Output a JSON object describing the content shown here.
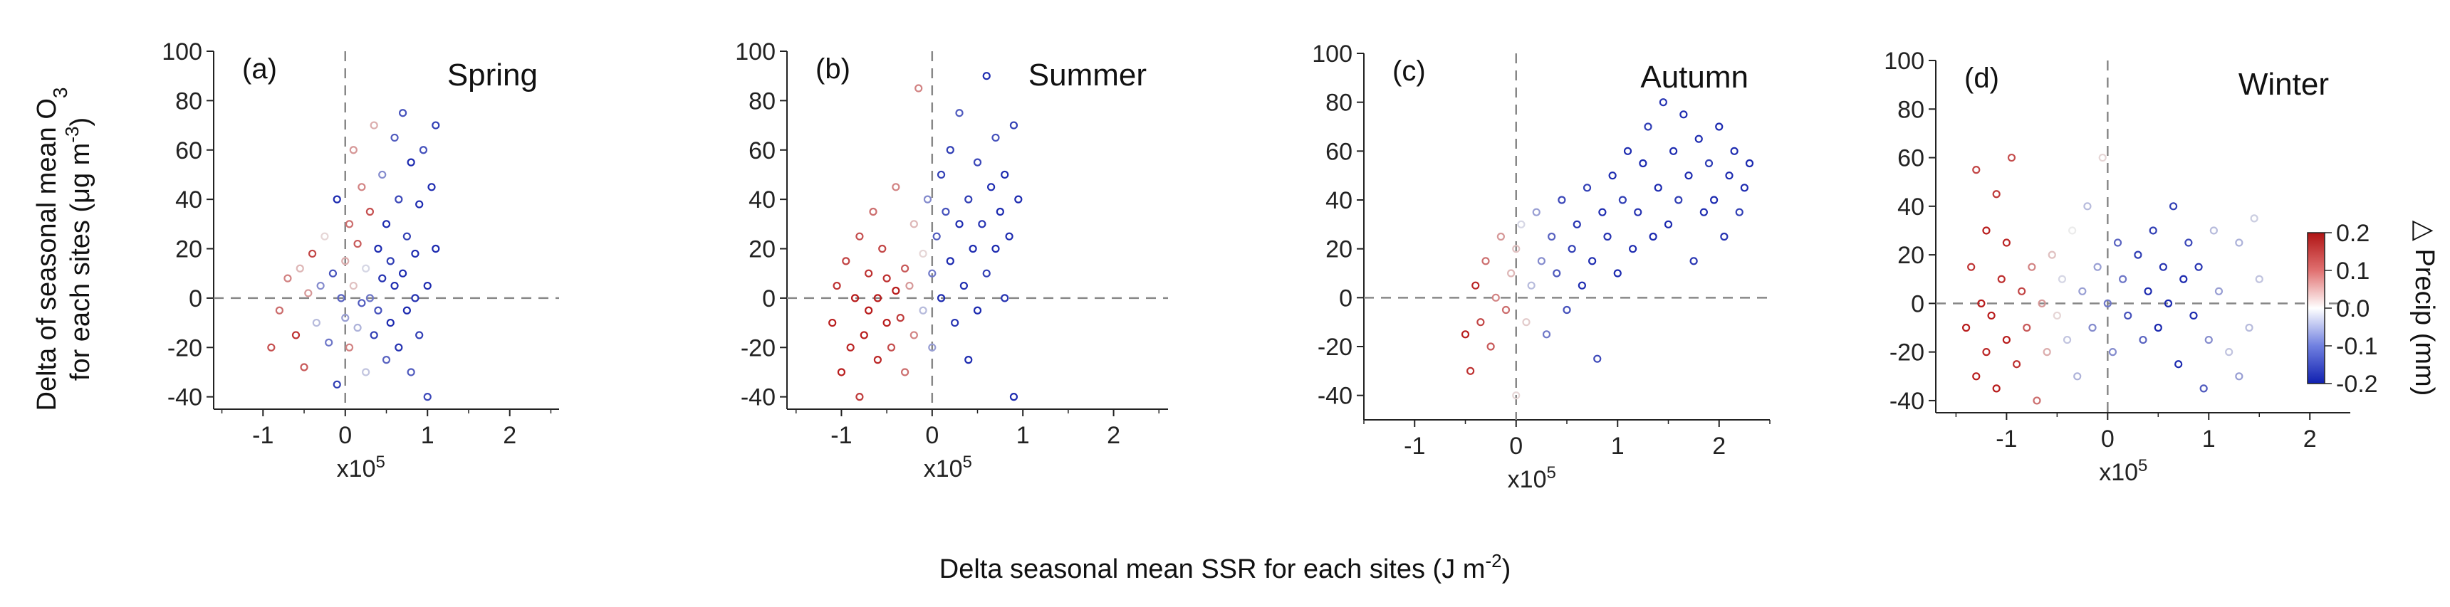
{
  "figure": {
    "ylabel_line1": "Delta of seasonal mean O",
    "ylabel_sub": "3",
    "ylabel_line2_pre": "for each sites (μg m",
    "ylabel_line2_sup": "-3",
    "ylabel_line2_post": ")",
    "xlabel_pre": "Delta seasonal mean SSR for each sites (J m",
    "xlabel_sup": "-2",
    "xlabel_post": ")",
    "colorbar": {
      "label": "△  Precip (mm)",
      "ticks": [
        "0.2",
        "0.1",
        "0.0",
        "-0.1",
        "-0.2"
      ],
      "range": [
        -0.2,
        0.2
      ],
      "colors": {
        "high": "#c81e1e",
        "mid": "#ffffff",
        "low": "#1f2fbf"
      }
    }
  },
  "chart_data": [
    {
      "type": "scatter",
      "letter": "(a)",
      "title": "Spring",
      "xlabel": "x10",
      "xlabel_sup": "5",
      "xlim": [
        -1.6,
        2.6
      ],
      "ylim": [
        -45,
        100
      ],
      "xticks": [
        "-1",
        "0",
        "1",
        "2"
      ],
      "xtick_values": [
        -1,
        0,
        1,
        2
      ],
      "yticks": [
        "100",
        "80",
        "60",
        "40",
        "20",
        "0",
        "-20",
        "-40"
      ],
      "ytick_values": [
        100,
        80,
        60,
        40,
        20,
        0,
        -20,
        -40
      ],
      "points": [
        [
          -0.9,
          -20,
          0.15
        ],
        [
          -0.8,
          -5,
          0.12
        ],
        [
          -0.7,
          8,
          0.1
        ],
        [
          -0.6,
          -15,
          0.18
        ],
        [
          -0.55,
          12,
          0.05
        ],
        [
          -0.5,
          -28,
          0.14
        ],
        [
          -0.45,
          2,
          0.08
        ],
        [
          -0.4,
          18,
          0.16
        ],
        [
          -0.35,
          -10,
          -0.05
        ],
        [
          -0.3,
          5,
          -0.1
        ],
        [
          -0.25,
          25,
          0.02
        ],
        [
          -0.2,
          -18,
          -0.12
        ],
        [
          -0.15,
          10,
          -0.16
        ],
        [
          -0.1,
          40,
          -0.2
        ],
        [
          -0.1,
          -35,
          -0.18
        ],
        [
          -0.05,
          0,
          -0.14
        ],
        [
          0.0,
          15,
          0.06
        ],
        [
          0.0,
          -8,
          -0.08
        ],
        [
          0.05,
          30,
          0.12
        ],
        [
          0.05,
          -20,
          0.1
        ],
        [
          0.1,
          5,
          0.04
        ],
        [
          0.1,
          60,
          0.08
        ],
        [
          0.15,
          -12,
          -0.06
        ],
        [
          0.15,
          22,
          0.14
        ],
        [
          0.2,
          -2,
          -0.15
        ],
        [
          0.2,
          45,
          0.1
        ],
        [
          0.25,
          12,
          -0.02
        ],
        [
          0.25,
          -30,
          -0.04
        ],
        [
          0.3,
          35,
          0.15
        ],
        [
          0.3,
          0,
          -0.12
        ],
        [
          0.35,
          70,
          0.06
        ],
        [
          0.35,
          -15,
          -0.18
        ],
        [
          0.4,
          20,
          -0.2
        ],
        [
          0.4,
          -5,
          -0.16
        ],
        [
          0.45,
          50,
          -0.1
        ],
        [
          0.45,
          8,
          -0.19
        ],
        [
          0.5,
          -25,
          -0.14
        ],
        [
          0.5,
          30,
          -0.2
        ],
        [
          0.55,
          15,
          -0.18
        ],
        [
          0.55,
          -10,
          -0.2
        ],
        [
          0.6,
          65,
          -0.15
        ],
        [
          0.6,
          5,
          -0.2
        ],
        [
          0.65,
          -20,
          -0.19
        ],
        [
          0.65,
          40,
          -0.17
        ],
        [
          0.7,
          10,
          -0.2
        ],
        [
          0.7,
          75,
          -0.16
        ],
        [
          0.75,
          -5,
          -0.2
        ],
        [
          0.75,
          25,
          -0.18
        ],
        [
          0.8,
          55,
          -0.2
        ],
        [
          0.8,
          -30,
          -0.15
        ],
        [
          0.85,
          18,
          -0.2
        ],
        [
          0.85,
          0,
          -0.19
        ],
        [
          0.9,
          38,
          -0.2
        ],
        [
          0.9,
          -15,
          -0.18
        ],
        [
          0.95,
          60,
          -0.16
        ],
        [
          1.0,
          5,
          -0.2
        ],
        [
          1.0,
          -40,
          -0.17
        ],
        [
          1.05,
          45,
          -0.2
        ],
        [
          1.1,
          70,
          -0.18
        ],
        [
          1.1,
          20,
          -0.2
        ]
      ]
    },
    {
      "type": "scatter",
      "letter": "(b)",
      "title": "Summer",
      "xlabel": "x10",
      "xlabel_sup": "5",
      "xlim": [
        -1.6,
        2.6
      ],
      "ylim": [
        -45,
        100
      ],
      "xticks": [
        "-1",
        "0",
        "1",
        "2"
      ],
      "xtick_values": [
        -1,
        0,
        1,
        2
      ],
      "yticks": [
        "100",
        "80",
        "60",
        "40",
        "20",
        "0",
        "-20",
        "-40"
      ],
      "ytick_values": [
        100,
        80,
        60,
        40,
        20,
        0,
        -20,
        -40
      ],
      "points": [
        [
          -1.1,
          -10,
          0.2
        ],
        [
          -1.05,
          5,
          0.18
        ],
        [
          -1.0,
          -30,
          0.2
        ],
        [
          -0.95,
          15,
          0.16
        ],
        [
          -0.9,
          -20,
          0.19
        ],
        [
          -0.85,
          0,
          0.2
        ],
        [
          -0.8,
          -40,
          0.17
        ],
        [
          -0.8,
          25,
          0.15
        ],
        [
          -0.75,
          -15,
          0.2
        ],
        [
          -0.7,
          10,
          0.18
        ],
        [
          -0.7,
          -5,
          0.2
        ],
        [
          -0.65,
          35,
          0.12
        ],
        [
          -0.6,
          -25,
          0.19
        ],
        [
          -0.6,
          0,
          0.2
        ],
        [
          -0.55,
          20,
          0.16
        ],
        [
          -0.5,
          -10,
          0.2
        ],
        [
          -0.5,
          8,
          0.18
        ],
        [
          -0.45,
          -20,
          0.15
        ],
        [
          -0.4,
          3,
          0.2
        ],
        [
          -0.4,
          45,
          0.1
        ],
        [
          -0.35,
          -8,
          0.17
        ],
        [
          -0.3,
          12,
          0.14
        ],
        [
          -0.3,
          -30,
          0.12
        ],
        [
          -0.25,
          5,
          0.08
        ],
        [
          -0.2,
          -15,
          0.1
        ],
        [
          -0.2,
          30,
          0.05
        ],
        [
          -0.15,
          85,
          0.1
        ],
        [
          -0.1,
          -5,
          -0.05
        ],
        [
          -0.1,
          18,
          0.02
        ],
        [
          -0.05,
          40,
          -0.1
        ],
        [
          0.0,
          10,
          -0.12
        ],
        [
          0.0,
          -20,
          -0.08
        ],
        [
          0.05,
          25,
          -0.15
        ],
        [
          0.1,
          50,
          -0.18
        ],
        [
          0.1,
          0,
          -0.2
        ],
        [
          0.15,
          35,
          -0.16
        ],
        [
          0.2,
          15,
          -0.2
        ],
        [
          0.2,
          60,
          -0.18
        ],
        [
          0.25,
          -10,
          -0.19
        ],
        [
          0.3,
          30,
          -0.2
        ],
        [
          0.3,
          75,
          -0.15
        ],
        [
          0.35,
          5,
          -0.2
        ],
        [
          0.4,
          40,
          -0.18
        ],
        [
          0.4,
          -25,
          -0.2
        ],
        [
          0.45,
          20,
          -0.2
        ],
        [
          0.5,
          55,
          -0.17
        ],
        [
          0.5,
          -5,
          -0.2
        ],
        [
          0.55,
          30,
          -0.19
        ],
        [
          0.6,
          90,
          -0.2
        ],
        [
          0.6,
          10,
          -0.18
        ],
        [
          0.65,
          45,
          -0.2
        ],
        [
          0.7,
          20,
          -0.2
        ],
        [
          0.7,
          65,
          -0.16
        ],
        [
          0.75,
          35,
          -0.2
        ],
        [
          0.8,
          0,
          -0.19
        ],
        [
          0.8,
          50,
          -0.2
        ],
        [
          0.85,
          25,
          -0.2
        ],
        [
          0.9,
          70,
          -0.18
        ],
        [
          0.9,
          -40,
          -0.2
        ],
        [
          0.95,
          40,
          -0.2
        ]
      ]
    },
    {
      "type": "scatter",
      "letter": "(c)",
      "title": "Autumn",
      "xlabel": "x10",
      "xlabel_sup": "5",
      "xlim": [
        -1.5,
        2.5
      ],
      "ylim": [
        -50,
        100
      ],
      "xticks": [
        "-1",
        "0",
        "1",
        "2"
      ],
      "xtick_values": [
        -1,
        0,
        1,
        2
      ],
      "yticks": [
        "100",
        "80",
        "60",
        "40",
        "20",
        "0",
        "-20",
        "-40"
      ],
      "ytick_values": [
        100,
        80,
        60,
        40,
        20,
        0,
        -20,
        -40
      ],
      "points": [
        [
          -0.5,
          -15,
          0.2
        ],
        [
          -0.45,
          -30,
          0.18
        ],
        [
          -0.4,
          5,
          0.19
        ],
        [
          -0.35,
          -10,
          0.16
        ],
        [
          -0.3,
          15,
          0.12
        ],
        [
          -0.25,
          -20,
          0.14
        ],
        [
          -0.2,
          0,
          0.1
        ],
        [
          -0.15,
          25,
          0.08
        ],
        [
          -0.1,
          -5,
          0.12
        ],
        [
          -0.05,
          10,
          0.05
        ],
        [
          0.0,
          -40,
          0.02
        ],
        [
          0.0,
          20,
          0.04
        ],
        [
          0.05,
          30,
          -0.02
        ],
        [
          0.1,
          -10,
          0.03
        ],
        [
          0.15,
          5,
          -0.05
        ],
        [
          0.2,
          35,
          -0.08
        ],
        [
          0.25,
          15,
          -0.1
        ],
        [
          0.3,
          -15,
          -0.12
        ],
        [
          0.35,
          25,
          -0.14
        ],
        [
          0.4,
          10,
          -0.15
        ],
        [
          0.45,
          40,
          -0.17
        ],
        [
          0.5,
          -5,
          -0.16
        ],
        [
          0.55,
          20,
          -0.18
        ],
        [
          0.6,
          30,
          -0.19
        ],
        [
          0.65,
          5,
          -0.2
        ],
        [
          0.7,
          45,
          -0.18
        ],
        [
          0.75,
          15,
          -0.2
        ],
        [
          0.8,
          -25,
          -0.17
        ],
        [
          0.85,
          35,
          -0.2
        ],
        [
          0.9,
          25,
          -0.19
        ],
        [
          0.95,
          50,
          -0.2
        ],
        [
          1.0,
          10,
          -0.2
        ],
        [
          1.05,
          40,
          -0.18
        ],
        [
          1.1,
          60,
          -0.2
        ],
        [
          1.15,
          20,
          -0.2
        ],
        [
          1.2,
          35,
          -0.19
        ],
        [
          1.25,
          55,
          -0.2
        ],
        [
          1.3,
          70,
          -0.18
        ],
        [
          1.35,
          25,
          -0.2
        ],
        [
          1.4,
          45,
          -0.2
        ],
        [
          1.45,
          80,
          -0.19
        ],
        [
          1.5,
          30,
          -0.2
        ],
        [
          1.55,
          60,
          -0.2
        ],
        [
          1.6,
          40,
          -0.18
        ],
        [
          1.65,
          75,
          -0.2
        ],
        [
          1.7,
          50,
          -0.2
        ],
        [
          1.75,
          15,
          -0.19
        ],
        [
          1.8,
          65,
          -0.2
        ],
        [
          1.85,
          35,
          -0.2
        ],
        [
          1.9,
          55,
          -0.18
        ],
        [
          1.95,
          40,
          -0.2
        ],
        [
          2.0,
          70,
          -0.2
        ],
        [
          2.05,
          25,
          -0.19
        ],
        [
          2.1,
          50,
          -0.2
        ],
        [
          2.15,
          60,
          -0.2
        ],
        [
          2.2,
          35,
          -0.18
        ],
        [
          2.25,
          45,
          -0.2
        ],
        [
          2.3,
          55,
          -0.2
        ]
      ]
    },
    {
      "type": "scatter",
      "letter": "(d)",
      "title": "Winter",
      "xlabel": "x10",
      "xlabel_sup": "5",
      "xlim": [
        -1.7,
        2.4
      ],
      "ylim": [
        -45,
        100
      ],
      "xticks": [
        "-1",
        "0",
        "1",
        "2"
      ],
      "xtick_values": [
        -1,
        0,
        1,
        2
      ],
      "yticks": [
        "100",
        "80",
        "60",
        "40",
        "20",
        "0",
        "-20",
        "-40"
      ],
      "ytick_values": [
        100,
        80,
        60,
        40,
        20,
        0,
        -20,
        -40
      ],
      "points": [
        [
          -1.4,
          -10,
          0.2
        ],
        [
          -1.35,
          15,
          0.18
        ],
        [
          -1.3,
          -30,
          0.2
        ],
        [
          -1.3,
          55,
          0.16
        ],
        [
          -1.25,
          0,
          0.2
        ],
        [
          -1.2,
          -20,
          0.19
        ],
        [
          -1.2,
          30,
          0.2
        ],
        [
          -1.15,
          -5,
          0.2
        ],
        [
          -1.1,
          45,
          0.17
        ],
        [
          -1.1,
          -35,
          0.2
        ],
        [
          -1.05,
          10,
          0.18
        ],
        [
          -1.0,
          -15,
          0.2
        ],
        [
          -1.0,
          25,
          0.19
        ],
        [
          -0.95,
          60,
          0.15
        ],
        [
          -0.9,
          -25,
          0.18
        ],
        [
          -0.85,
          5,
          0.16
        ],
        [
          -0.8,
          -10,
          0.14
        ],
        [
          -0.75,
          15,
          0.1
        ],
        [
          -0.7,
          -40,
          0.12
        ],
        [
          -0.65,
          0,
          0.08
        ],
        [
          -0.6,
          -20,
          0.06
        ],
        [
          -0.55,
          20,
          0.04
        ],
        [
          -0.5,
          -5,
          0.02
        ],
        [
          -0.45,
          10,
          -0.02
        ],
        [
          -0.4,
          -15,
          -0.04
        ],
        [
          -0.35,
          30,
          0.0
        ],
        [
          -0.3,
          -30,
          -0.06
        ],
        [
          -0.25,
          5,
          -0.08
        ],
        [
          -0.2,
          40,
          -0.05
        ],
        [
          -0.15,
          -10,
          -0.1
        ],
        [
          -0.1,
          15,
          -0.08
        ],
        [
          -0.05,
          60,
          0.02
        ],
        [
          0.0,
          0,
          -0.12
        ],
        [
          0.05,
          -20,
          -0.1
        ],
        [
          0.1,
          25,
          -0.14
        ],
        [
          0.15,
          10,
          -0.12
        ],
        [
          0.2,
          -5,
          -0.16
        ],
        [
          0.3,
          20,
          -0.18
        ],
        [
          0.35,
          -15,
          -0.14
        ],
        [
          0.4,
          5,
          -0.2
        ],
        [
          0.45,
          30,
          -0.18
        ],
        [
          0.5,
          -10,
          -0.2
        ],
        [
          0.55,
          15,
          -0.19
        ],
        [
          0.6,
          0,
          -0.2
        ],
        [
          0.65,
          40,
          -0.18
        ],
        [
          0.7,
          -25,
          -0.2
        ],
        [
          0.75,
          10,
          -0.2
        ],
        [
          0.8,
          25,
          -0.17
        ],
        [
          0.85,
          -5,
          -0.2
        ],
        [
          0.9,
          15,
          -0.19
        ],
        [
          1.0,
          -15,
          -0.1
        ],
        [
          1.05,
          30,
          -0.05
        ],
        [
          1.1,
          5,
          -0.08
        ],
        [
          1.2,
          -20,
          -0.04
        ],
        [
          1.3,
          25,
          -0.06
        ],
        [
          1.4,
          -10,
          -0.05
        ],
        [
          1.5,
          10,
          -0.04
        ],
        [
          1.3,
          -30,
          -0.08
        ],
        [
          1.45,
          35,
          -0.03
        ],
        [
          0.95,
          -35,
          -0.15
        ]
      ]
    }
  ]
}
